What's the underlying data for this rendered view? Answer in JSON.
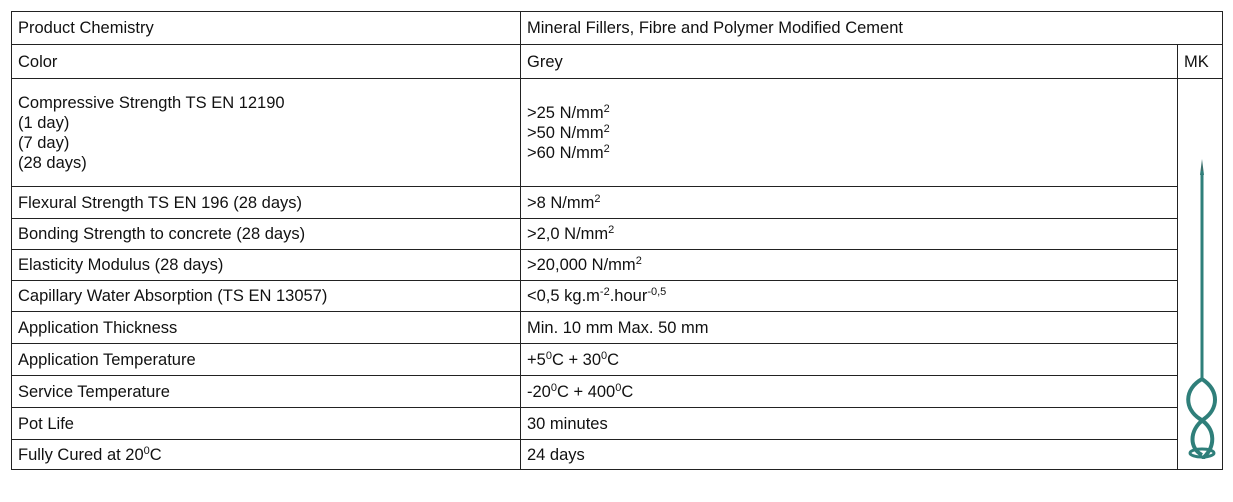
{
  "table": {
    "rows": [
      {
        "label": [
          [
            {
              "text": "Product Chemistry"
            }
          ]
        ],
        "value": [
          [
            {
              "text": "Mineral Fillers, Fibre and Polymer Modified Cement"
            }
          ]
        ]
      },
      {
        "label": [
          [
            {
              "text": "Color"
            }
          ]
        ],
        "value": [
          [
            {
              "text": "Grey"
            }
          ]
        ],
        "extra": "MK"
      },
      {
        "label": [
          [
            {
              "text": "Compressive Strength TS EN 12190"
            }
          ],
          [
            {
              "text": "(1 day)"
            }
          ],
          [
            {
              "text": "(7 day)"
            }
          ],
          [
            {
              "text": "(28 days)"
            }
          ]
        ],
        "value": [
          [
            {
              "text": ">25 N/mm"
            },
            {
              "sup": "2"
            }
          ],
          [
            {
              "text": ">50 N/mm"
            },
            {
              "sup": "2"
            }
          ],
          [
            {
              "text": ">60 N/mm"
            },
            {
              "sup": "2"
            }
          ]
        ]
      },
      {
        "label": [
          [
            {
              "text": "Flexural Strength TS EN 196 (28 days)"
            }
          ]
        ],
        "value": [
          [
            {
              "text": ">8 N/mm"
            },
            {
              "sup": "2"
            }
          ]
        ]
      },
      {
        "label": [
          [
            {
              "text": "Bonding Strength to concrete (28 days)"
            }
          ]
        ],
        "value": [
          [
            {
              "text": ">2,0 N/mm"
            },
            {
              "sup": "2"
            }
          ]
        ]
      },
      {
        "label": [
          [
            {
              "text": "Elasticity Modulus (28 days)"
            }
          ]
        ],
        "value": [
          [
            {
              "text": ">20,000 N/mm"
            },
            {
              "sup": "2"
            }
          ]
        ]
      },
      {
        "label": [
          [
            {
              "text": "Capillary Water Absorption (TS EN 13057)"
            }
          ]
        ],
        "value": [
          [
            {
              "text": "<0,5 kg.m"
            },
            {
              "sup": "-2"
            },
            {
              "text": ".hour"
            },
            {
              "sup": "-0,5"
            }
          ]
        ]
      },
      {
        "label": [
          [
            {
              "text": "Application Thickness"
            }
          ]
        ],
        "value": [
          [
            {
              "text": "Min. 10 mm Max. 50 mm"
            }
          ]
        ]
      },
      {
        "label": [
          [
            {
              "text": "Application Temperature"
            }
          ]
        ],
        "value": [
          [
            {
              "text": "+5"
            },
            {
              "sup": "0"
            },
            {
              "text": "C + 30"
            },
            {
              "sup": "0"
            },
            {
              "text": "C"
            }
          ]
        ]
      },
      {
        "label": [
          [
            {
              "text": "Service Temperature"
            }
          ]
        ],
        "value": [
          [
            {
              "text": "-20"
            },
            {
              "sup": "0"
            },
            {
              "text": "C + 400"
            },
            {
              "sup": "0"
            },
            {
              "text": "C"
            }
          ]
        ]
      },
      {
        "label": [
          [
            {
              "text": "Pot Life"
            }
          ]
        ],
        "value": [
          [
            {
              "text": "30 minutes"
            }
          ]
        ]
      },
      {
        "label": [
          [
            {
              "text": "Fully Cured at 20"
            },
            {
              "sup": "0"
            },
            {
              "text": "C"
            }
          ]
        ],
        "value": [
          [
            {
              "text": "24 days"
            }
          ]
        ]
      }
    ]
  }
}
